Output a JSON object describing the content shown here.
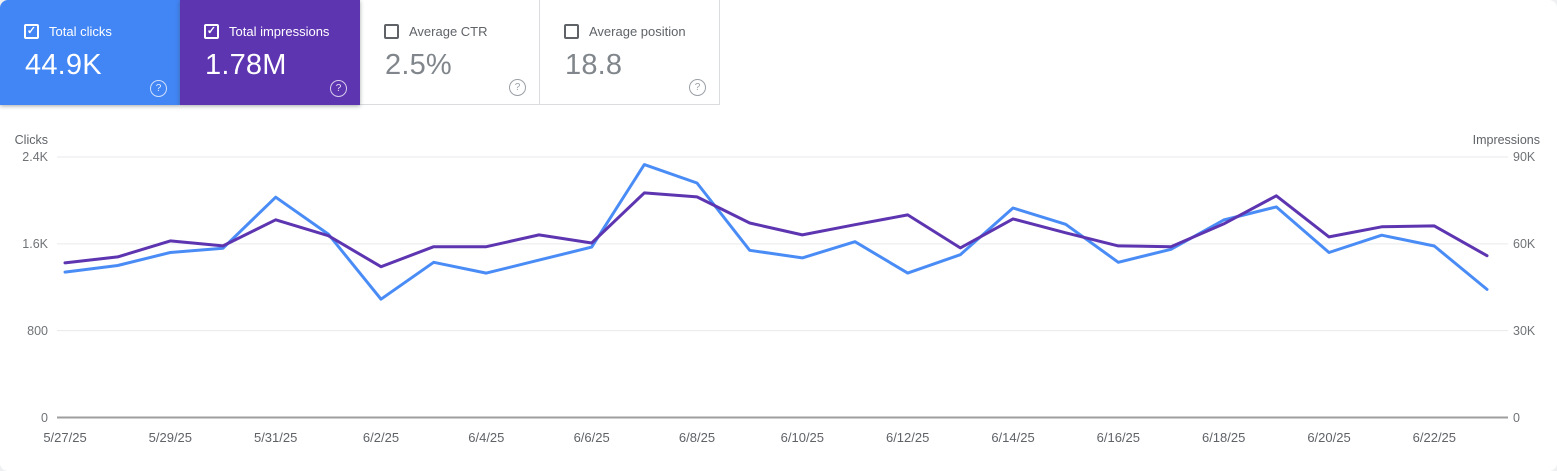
{
  "icons": {
    "help": "?",
    "check": "✓"
  },
  "cards": [
    {
      "label": "Total clicks",
      "value": "44.9K",
      "checked": true,
      "bg": "#4285f4"
    },
    {
      "label": "Total impressions",
      "value": "1.78M",
      "checked": true,
      "bg": "#5e35b1"
    },
    {
      "label": "Average CTR",
      "value": "2.5%",
      "checked": false,
      "bg": "#ffffff"
    },
    {
      "label": "Average position",
      "value": "18.8",
      "checked": false,
      "bg": "#ffffff"
    }
  ],
  "chart_data": {
    "type": "line",
    "x": [
      "5/27/25",
      "5/28/25",
      "5/29/25",
      "5/30/25",
      "5/31/25",
      "6/1/25",
      "6/2/25",
      "6/3/25",
      "6/4/25",
      "6/5/25",
      "6/6/25",
      "6/7/25",
      "6/8/25",
      "6/9/25",
      "6/10/25",
      "6/11/25",
      "6/12/25",
      "6/13/25",
      "6/14/25",
      "6/15/25",
      "6/16/25",
      "6/17/25",
      "6/18/25",
      "6/19/25",
      "6/20/25",
      "6/21/25",
      "6/22/25",
      "6/23/25"
    ],
    "x_tick_labels": [
      "5/27/25",
      "5/29/25",
      "5/31/25",
      "6/2/25",
      "6/4/25",
      "6/6/25",
      "6/8/25",
      "6/10/25",
      "6/12/25",
      "6/14/25",
      "6/16/25",
      "6/18/25",
      "6/20/25",
      "6/22/25"
    ],
    "series": [
      {
        "name": "Clicks",
        "axis": "left",
        "color": "#4a8cf6",
        "values": [
          1340,
          1400,
          1520,
          1560,
          2030,
          1690,
          1090,
          1430,
          1330,
          1450,
          1570,
          2330,
          2160,
          1540,
          1470,
          1620,
          1330,
          1500,
          1930,
          1780,
          1430,
          1550,
          1820,
          1940,
          1520,
          1680,
          1580,
          1180
        ]
      },
      {
        "name": "Impressions",
        "axis": "right",
        "color": "#5e35b1",
        "values": [
          53400,
          55500,
          61000,
          59300,
          68300,
          62800,
          52100,
          59000,
          59000,
          63100,
          60300,
          77600,
          76200,
          67200,
          63100,
          66600,
          70000,
          58600,
          68600,
          63800,
          59300,
          59000,
          66900,
          76600,
          62400,
          65900,
          66200,
          55900
        ]
      }
    ],
    "left_axis": {
      "title": "Clicks",
      "ticks": [
        "2.4K",
        "1.6K",
        "800",
        "0"
      ],
      "range": [
        0,
        2400
      ]
    },
    "right_axis": {
      "title": "Impressions",
      "ticks": [
        "90K",
        "60K",
        "30K",
        "0"
      ],
      "range": [
        0,
        90000
      ]
    },
    "grid": "horizontal",
    "legend_position": "none"
  }
}
